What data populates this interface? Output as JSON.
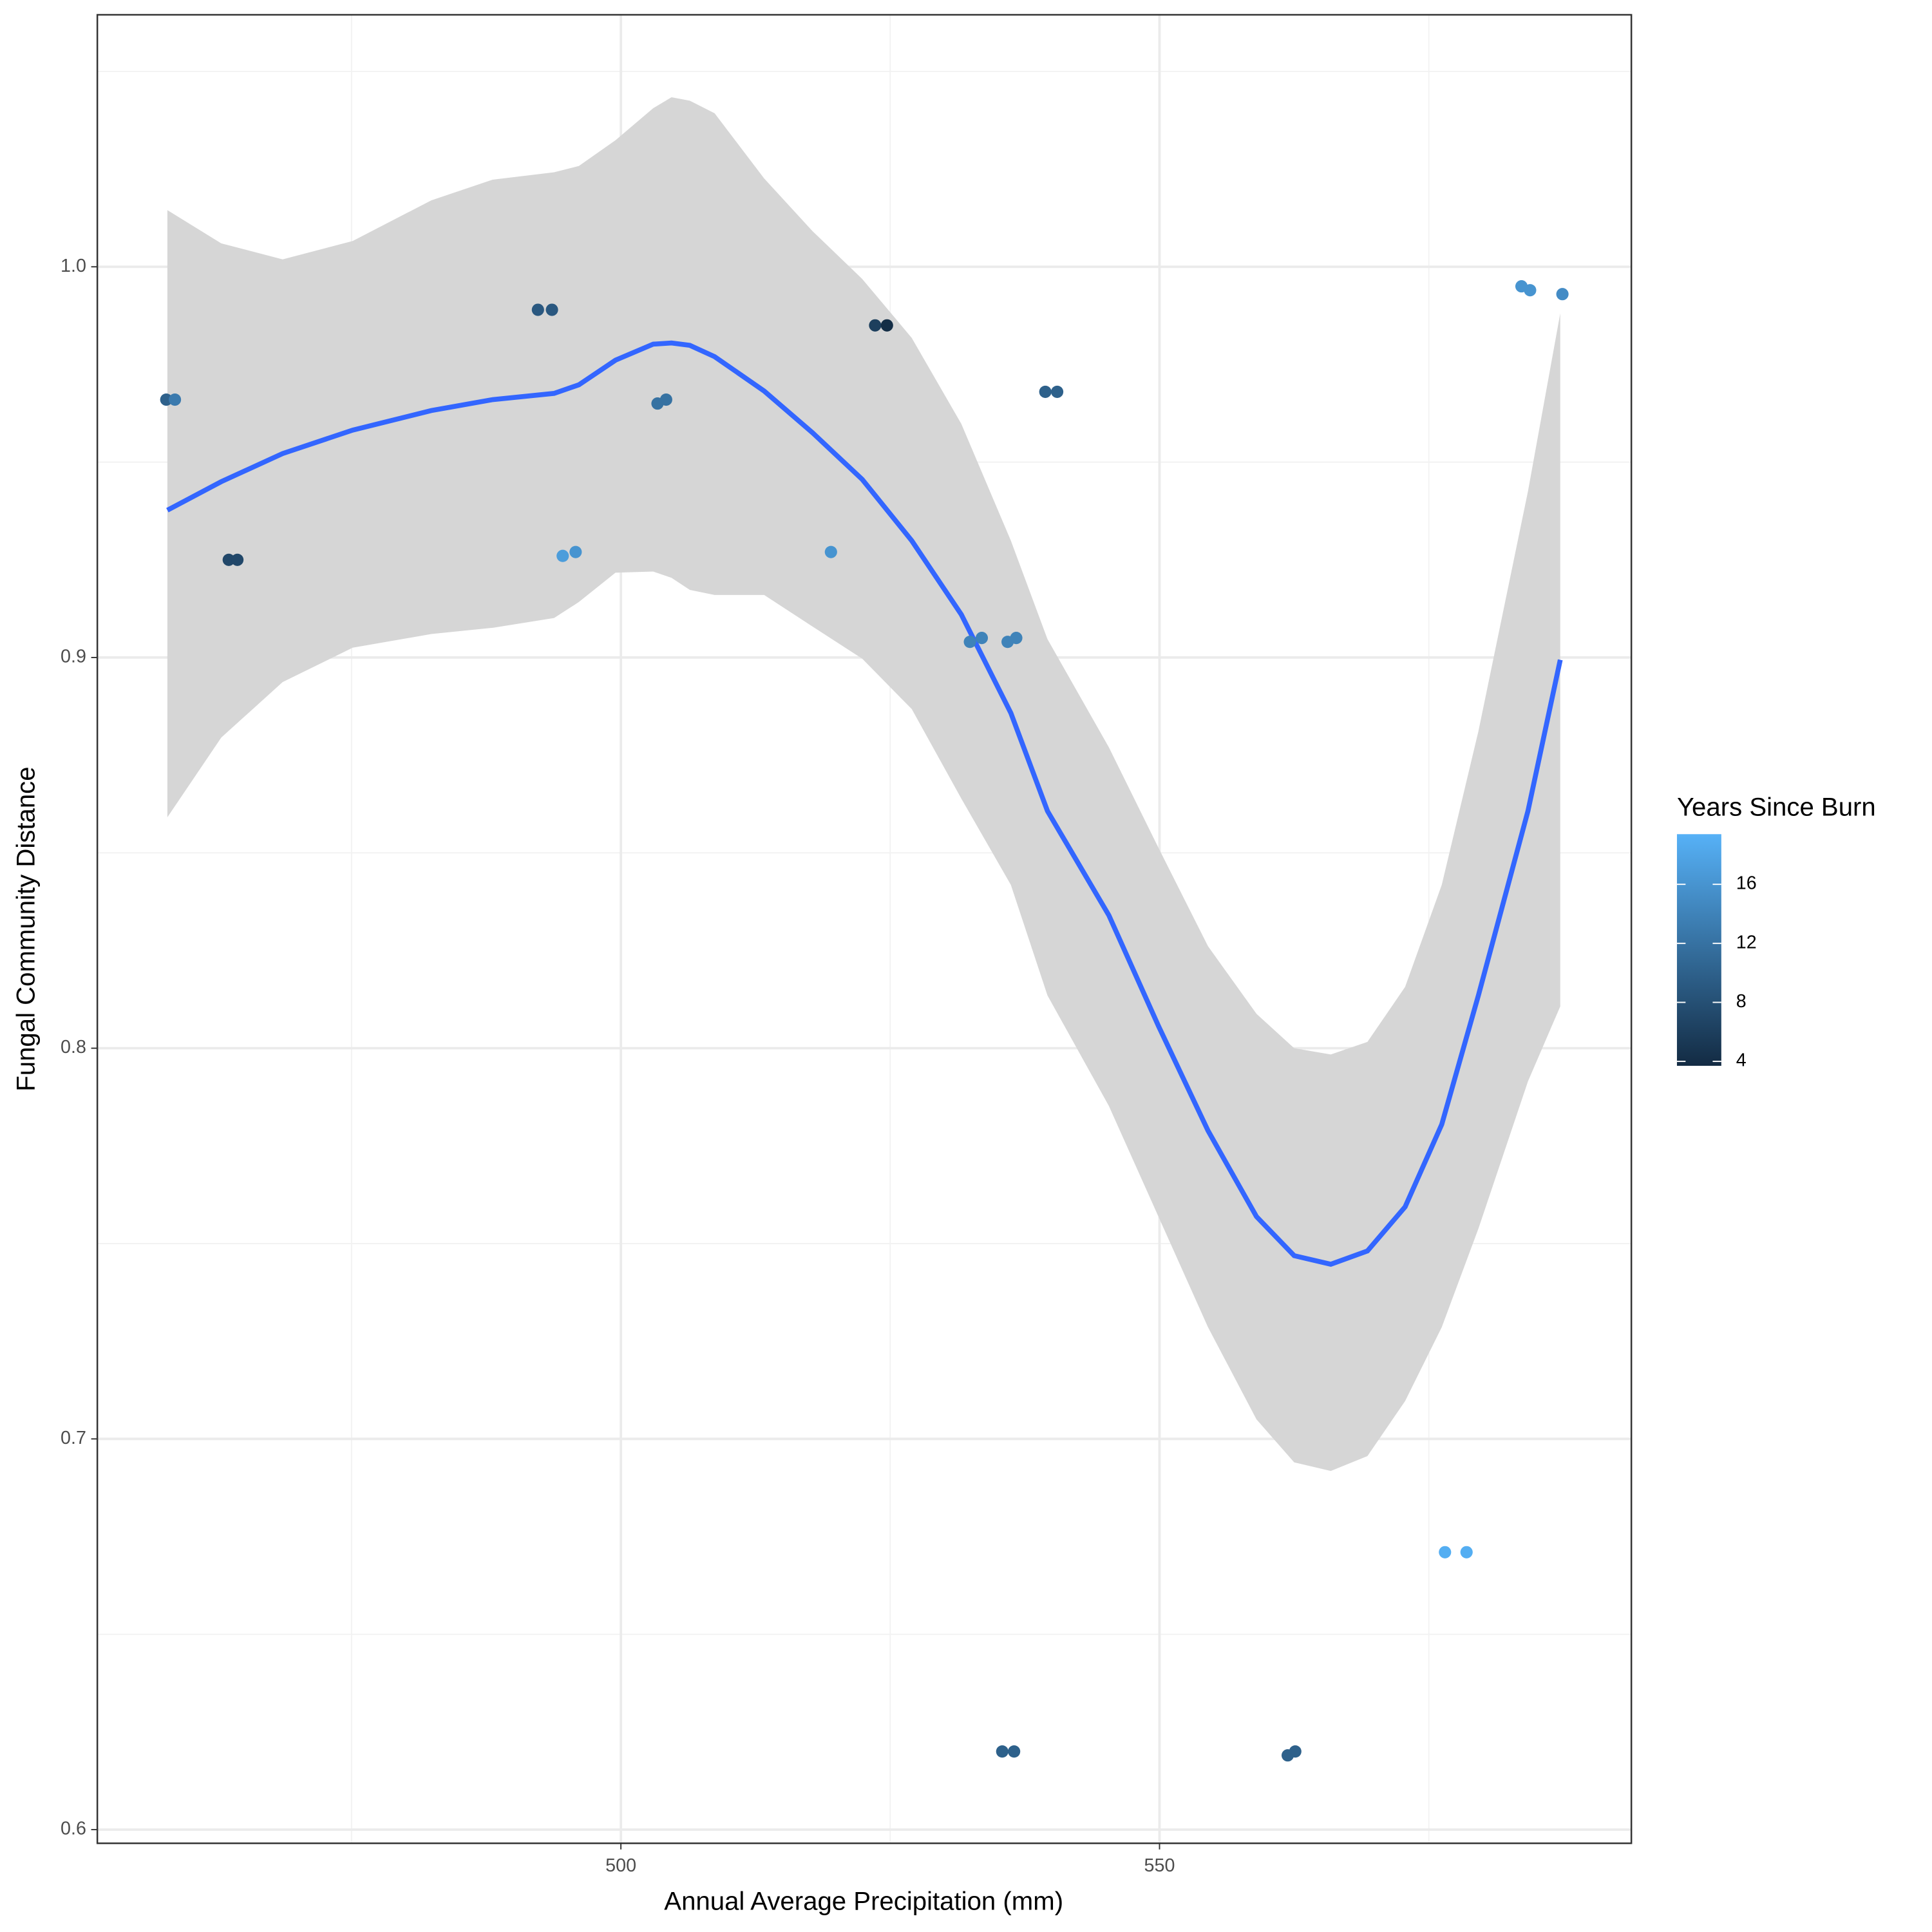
{
  "chart_data": {
    "type": "scatter",
    "x_label": "Annual Average Precipitation (mm)",
    "y_label": "Fungal Community Distance",
    "xlim": [
      451.4,
      593.8
    ],
    "ylim": [
      0.5965,
      1.0645
    ],
    "xticks": [
      500,
      550
    ],
    "yticks": [
      0.6,
      0.7,
      0.8,
      0.9,
      {
        "value": 1.0,
        "label": "1.0"
      }
    ],
    "xminor": [
      475,
      525,
      575
    ],
    "yminor": [
      0.65,
      0.75,
      0.85,
      0.95,
      1.05
    ],
    "grid": true,
    "x": [
      457.8,
      458.6,
      463.6,
      464.4,
      492.3,
      493.6,
      494.6,
      495.8,
      503.4,
      504.2,
      519.5,
      523.6,
      524.7,
      532.4,
      533.5,
      535.9,
      536.7,
      535.4,
      536.5,
      539.4,
      540.5,
      561.9,
      562.6,
      576.5,
      578.5,
      583.6,
      584.4,
      587.4
    ],
    "values": [
      0.966,
      0.966,
      0.925,
      0.925,
      0.989,
      0.989,
      0.926,
      0.927,
      0.965,
      0.966,
      0.927,
      0.985,
      0.985,
      0.904,
      0.905,
      0.904,
      0.905,
      0.62,
      0.62,
      0.968,
      0.968,
      0.619,
      0.62,
      0.671,
      0.671,
      0.995,
      0.994,
      0.993
    ],
    "color_values": [
      10,
      13,
      7,
      7,
      9,
      9,
      17,
      16,
      12,
      12,
      16,
      6,
      4,
      14,
      14,
      14,
      14,
      10,
      10,
      10,
      10,
      10,
      10,
      19,
      19,
      16,
      16,
      15
    ],
    "legend_title": "Years Since Burn",
    "colorlim": [
      3.7,
      19.4
    ],
    "colorbar_ticks": [
      4,
      8,
      12,
      16
    ],
    "color_low": "#132B43",
    "color_high": "#56B1F7",
    "smooth": {
      "color": "#3366FF",
      "band_color": "#d6d6d6",
      "x": [
        457.9,
        462.9,
        468.6,
        475.1,
        482.4,
        488.1,
        493.8,
        496.1,
        499.5,
        503.0,
        504.7,
        506.4,
        508.7,
        513.3,
        517.8,
        522.4,
        527.0,
        531.6,
        536.2,
        539.6,
        545.3,
        549.9,
        554.5,
        559.0,
        562.5,
        565.9,
        569.3,
        572.8,
        576.2,
        579.6,
        584.2,
        587.2
      ],
      "y": [
        0.9377,
        0.945,
        0.9522,
        0.9582,
        0.9632,
        0.966,
        0.9676,
        0.9698,
        0.9761,
        0.9802,
        0.9805,
        0.9799,
        0.977,
        0.9682,
        0.9575,
        0.9456,
        0.9299,
        0.911,
        0.8858,
        0.8607,
        0.834,
        0.8057,
        0.7789,
        0.7569,
        0.7469,
        0.7447,
        0.7481,
        0.7594,
        0.7805,
        0.8135,
        0.8607,
        0.8994
      ],
      "ymin": [
        0.8591,
        0.8795,
        0.8937,
        0.9025,
        0.906,
        0.9076,
        0.9101,
        0.9142,
        0.9217,
        0.922,
        0.9204,
        0.9173,
        0.916,
        0.916,
        0.9079,
        0.8997,
        0.8868,
        0.8639,
        0.8418,
        0.8135,
        0.7852,
        0.7569,
        0.7286,
        0.705,
        0.694,
        0.6918,
        0.6956,
        0.7097,
        0.7286,
        0.7538,
        0.7915,
        0.8107
      ],
      "ymax": [
        1.0145,
        1.006,
        1.0019,
        1.0066,
        1.017,
        1.0223,
        1.0242,
        1.0258,
        1.0324,
        1.0406,
        1.0434,
        1.0425,
        1.0393,
        1.0226,
        1.0091,
        0.9969,
        0.9818,
        0.9598,
        0.9299,
        0.9047,
        0.877,
        0.8513,
        0.8261,
        0.8088,
        0.8,
        0.7984,
        0.8016,
        0.8157,
        0.8418,
        0.8811,
        0.9425,
        0.9881
      ]
    }
  }
}
